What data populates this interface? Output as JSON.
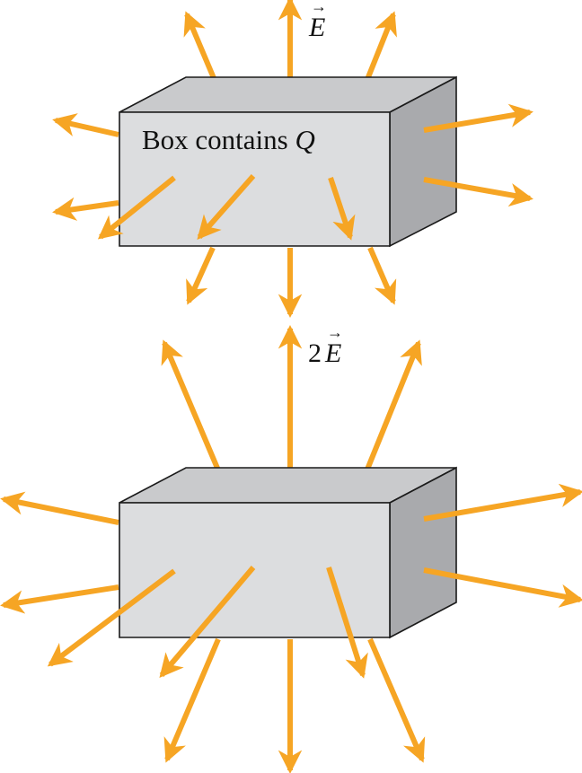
{
  "figure": {
    "top_box": {
      "label_text": "Box contains ",
      "label_var": "Q",
      "field_label_var": "E",
      "field_label_vec": "→"
    },
    "bottom_box": {
      "field_label_coef": "2",
      "field_label_var": "E",
      "field_label_vec": "→"
    }
  },
  "colors": {
    "arrow": "#F6A524",
    "box_front": "#DCDDDF",
    "box_top": "#C9CACC",
    "box_side": "#A9AAAD",
    "edge": "#1A1A1A"
  }
}
